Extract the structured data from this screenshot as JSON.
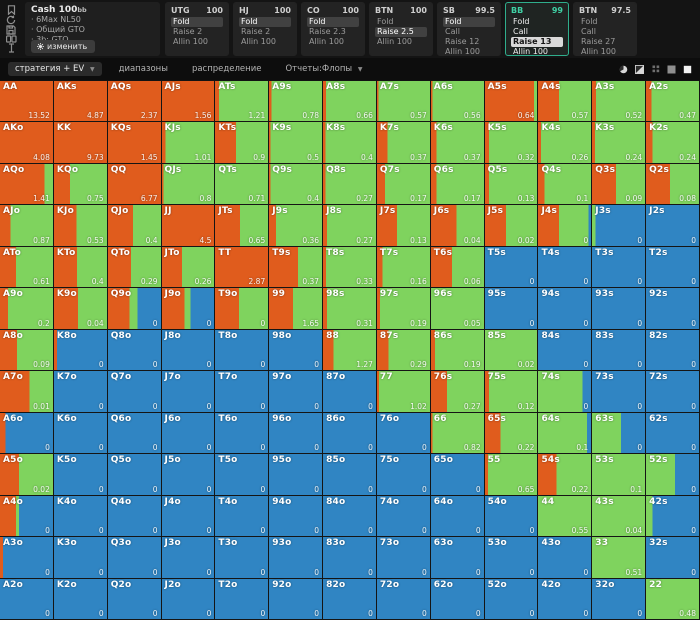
{
  "session": {
    "title": "Cash 100",
    "stack_unit": "bb",
    "lines": [
      "6Max NL50",
      "Общий GTO",
      "3b: GTO"
    ],
    "edit_button": "изменить"
  },
  "rail_icons": [
    "bookmark-icon",
    "history-icon",
    "save-icon",
    "cards-icon",
    "text-cursor-icon"
  ],
  "panels": [
    {
      "pos": "UTG",
      "stack": "100",
      "active": false,
      "actions": [
        {
          "label": "Fold",
          "sel": true
        },
        {
          "label": "Raise 2",
          "sel": false
        },
        {
          "label": "Allin 100",
          "sel": false
        }
      ]
    },
    {
      "pos": "HJ",
      "stack": "100",
      "active": false,
      "actions": [
        {
          "label": "Fold",
          "sel": true
        },
        {
          "label": "Raise 2",
          "sel": false
        },
        {
          "label": "Allin 100",
          "sel": false
        }
      ]
    },
    {
      "pos": "CO",
      "stack": "100",
      "active": false,
      "actions": [
        {
          "label": "Fold",
          "sel": true
        },
        {
          "label": "Raise 2.3",
          "sel": false
        },
        {
          "label": "Allin 100",
          "sel": false
        }
      ]
    },
    {
      "pos": "BTN",
      "stack": "100",
      "active": false,
      "actions": [
        {
          "label": "Fold",
          "sel": false
        },
        {
          "label": "Raise 2.5",
          "sel": true
        },
        {
          "label": "Allin 100",
          "sel": false
        }
      ]
    },
    {
      "pos": "SB",
      "stack": "99.5",
      "active": false,
      "actions": [
        {
          "label": "Fold",
          "sel": true
        },
        {
          "label": "Call",
          "sel": false
        },
        {
          "label": "Raise 12",
          "sel": false
        },
        {
          "label": "Allin 100",
          "sel": false
        }
      ]
    },
    {
      "pos": "BB",
      "stack": "99",
      "active": true,
      "actions": [
        {
          "label": "Fold",
          "sel": false
        },
        {
          "label": "Call",
          "sel": false
        },
        {
          "label": "Raise 13",
          "sel": true
        },
        {
          "label": "Allin 100",
          "sel": false
        }
      ]
    },
    {
      "pos": "BTN",
      "stack": "97.5",
      "active": false,
      "actions": [
        {
          "label": "Fold",
          "sel": false
        },
        {
          "label": "Call",
          "sel": false
        },
        {
          "label": "Raise 27",
          "sel": false
        },
        {
          "label": "Allin 100",
          "sel": false
        }
      ]
    }
  ],
  "toolbar": {
    "tabs": [
      {
        "label": "стратегия + EV",
        "caret": true,
        "active": true
      },
      {
        "label": "диапазоны",
        "caret": false,
        "active": false
      },
      {
        "label": "распределение",
        "caret": false,
        "active": false
      },
      {
        "label": "Отчеты:Флопы",
        "caret": true,
        "active": false
      }
    ],
    "right_icons": [
      "pie-icon",
      "diagonal-square-icon",
      "dots-grid-icon",
      "filled-square-icon",
      "outline-square-icon"
    ]
  },
  "colors": {
    "raise": "#e05c1d",
    "call": "#7fd35e",
    "fold": "#3085c3",
    "accent": "#2fae8c"
  },
  "grid": {
    "legend": {
      "raise": "Raise 13",
      "call": "Call",
      "fold": "Fold"
    },
    "rows": [
      [
        [
          "AA",
          "13.52",
          100,
          0,
          0
        ],
        [
          "AKs",
          "4.87",
          100,
          0,
          0
        ],
        [
          "AQs",
          "2.37",
          100,
          0,
          0
        ],
        [
          "AJs",
          "1.56",
          100,
          0,
          0
        ],
        [
          "ATs",
          "1.21",
          8,
          92,
          0
        ],
        [
          "A9s",
          "0.78",
          5,
          95,
          0
        ],
        [
          "A8s",
          "0.66",
          6,
          94,
          0
        ],
        [
          "A7s",
          "0.57",
          3,
          97,
          0
        ],
        [
          "A6s",
          "0.56",
          3,
          97,
          0
        ],
        [
          "A5s",
          "0.64",
          94,
          6,
          0
        ],
        [
          "A4s",
          "0.57",
          40,
          60,
          0
        ],
        [
          "A3s",
          "0.52",
          8,
          92,
          0
        ],
        [
          "A2s",
          "0.47",
          10,
          90,
          0
        ]
      ],
      [
        [
          "AKo",
          "4.08",
          100,
          0,
          0
        ],
        [
          "KK",
          "9.73",
          100,
          0,
          0
        ],
        [
          "KQs",
          "1.45",
          100,
          0,
          0
        ],
        [
          "KJs",
          "1.01",
          7,
          93,
          0
        ],
        [
          "KTs",
          "0.9",
          40,
          60,
          0
        ],
        [
          "K9s",
          "0.5",
          3,
          97,
          0
        ],
        [
          "K8s",
          "0.4",
          5,
          95,
          0
        ],
        [
          "K7s",
          "0.37",
          20,
          80,
          0
        ],
        [
          "K6s",
          "0.37",
          10,
          90,
          0
        ],
        [
          "K5s",
          "0.32",
          8,
          92,
          0
        ],
        [
          "K4s",
          "0.26",
          6,
          94,
          0
        ],
        [
          "K3s",
          "0.24",
          6,
          94,
          0
        ],
        [
          "K2s",
          "0.24",
          12,
          88,
          0
        ]
      ],
      [
        [
          "AQo",
          "1.41",
          84,
          16,
          0
        ],
        [
          "KQo",
          "0.75",
          30,
          70,
          0
        ],
        [
          "QQ",
          "6.77",
          100,
          0,
          0
        ],
        [
          "QJs",
          "0.8",
          3,
          97,
          0
        ],
        [
          "QTs",
          "0.71",
          0,
          100,
          0
        ],
        [
          "Q9s",
          "0.4",
          3,
          97,
          0
        ],
        [
          "Q8s",
          "0.27",
          5,
          95,
          0
        ],
        [
          "Q7s",
          "0.17",
          15,
          85,
          0
        ],
        [
          "Q6s",
          "0.17",
          10,
          90,
          0
        ],
        [
          "Q5s",
          "0.13",
          8,
          92,
          0
        ],
        [
          "Q4s",
          "0.1",
          12,
          88,
          0
        ],
        [
          "Q3s",
          "0.09",
          45,
          55,
          0
        ],
        [
          "Q2s",
          "0.08",
          45,
          55,
          0
        ]
      ],
      [
        [
          "AJo",
          "0.87",
          20,
          80,
          0
        ],
        [
          "KJo",
          "0.53",
          42,
          58,
          0
        ],
        [
          "QJo",
          "0.4",
          47,
          53,
          0
        ],
        [
          "JJ",
          "4.5",
          100,
          0,
          0
        ],
        [
          "JTs",
          "0.65",
          47,
          53,
          0
        ],
        [
          "J9s",
          "0.36",
          13,
          87,
          0
        ],
        [
          "J8s",
          "0.27",
          8,
          92,
          0
        ],
        [
          "J7s",
          "0.13",
          38,
          62,
          0
        ],
        [
          "J6s",
          "0.04",
          48,
          52,
          0
        ],
        [
          "J5s",
          "0.02",
          40,
          60,
          0
        ],
        [
          "J4s",
          "0",
          40,
          55,
          5
        ],
        [
          "J3s",
          "0",
          0,
          7,
          93
        ],
        [
          "J2s",
          "0",
          0,
          0,
          100
        ]
      ],
      [
        [
          "ATo",
          "0.61",
          30,
          70,
          0
        ],
        [
          "KTo",
          "0.4",
          43,
          57,
          0
        ],
        [
          "QTo",
          "0.29",
          43,
          57,
          0
        ],
        [
          "JTo",
          "0.26",
          38,
          62,
          0
        ],
        [
          "TT",
          "2.87",
          100,
          0,
          0
        ],
        [
          "T9s",
          "0.37",
          55,
          45,
          0
        ],
        [
          "T8s",
          "0.33",
          6,
          94,
          0
        ],
        [
          "T7s",
          "0.16",
          10,
          90,
          0
        ],
        [
          "T6s",
          "0.06",
          40,
          60,
          0
        ],
        [
          "T5s",
          "0",
          0,
          0,
          100
        ],
        [
          "T4s",
          "0",
          0,
          0,
          100
        ],
        [
          "T3s",
          "0",
          0,
          0,
          100
        ],
        [
          "T2s",
          "0",
          0,
          0,
          100
        ]
      ],
      [
        [
          "A9o",
          "0.2",
          15,
          85,
          0
        ],
        [
          "K9o",
          "0.04",
          45,
          55,
          0
        ],
        [
          "Q9o",
          "0",
          41,
          15,
          44
        ],
        [
          "J9o",
          "0",
          43,
          12,
          45
        ],
        [
          "T9o",
          "0",
          45,
          55,
          0
        ],
        [
          "99",
          "1.65",
          45,
          55,
          0
        ],
        [
          "98s",
          "0.31",
          8,
          92,
          0
        ],
        [
          "97s",
          "0.19",
          6,
          94,
          0
        ],
        [
          "96s",
          "0.05",
          0,
          100,
          0
        ],
        [
          "95s",
          "0",
          0,
          0,
          100
        ],
        [
          "94s",
          "0",
          0,
          0,
          100
        ],
        [
          "93s",
          "0",
          0,
          0,
          100
        ],
        [
          "92s",
          "0",
          0,
          0,
          100
        ]
      ],
      [
        [
          "A8o",
          "0.09",
          32,
          68,
          0
        ],
        [
          "K8o",
          "0",
          6,
          0,
          94
        ],
        [
          "Q8o",
          "0",
          0,
          0,
          100
        ],
        [
          "J8o",
          "0",
          0,
          0,
          100
        ],
        [
          "T8o",
          "0",
          0,
          0,
          100
        ],
        [
          "98o",
          "0",
          0,
          0,
          100
        ],
        [
          "88",
          "1.27",
          20,
          80,
          0
        ],
        [
          "87s",
          "0.29",
          22,
          78,
          0
        ],
        [
          "86s",
          "0.19",
          8,
          92,
          0
        ],
        [
          "85s",
          "0.02",
          0,
          100,
          0
        ],
        [
          "84s",
          "0",
          0,
          0,
          100
        ],
        [
          "83s",
          "0",
          0,
          0,
          100
        ],
        [
          "82s",
          "0",
          0,
          0,
          100
        ]
      ],
      [
        [
          "A7o",
          "0.01",
          56,
          44,
          0
        ],
        [
          "K7o",
          "0",
          0,
          0,
          100
        ],
        [
          "Q7o",
          "0",
          0,
          0,
          100
        ],
        [
          "J7o",
          "0",
          0,
          0,
          100
        ],
        [
          "T7o",
          "0",
          0,
          0,
          100
        ],
        [
          "97o",
          "0",
          0,
          0,
          100
        ],
        [
          "87o",
          "0",
          0,
          0,
          100
        ],
        [
          "77",
          "1.02",
          4,
          96,
          0
        ],
        [
          "76s",
          "0.27",
          30,
          70,
          0
        ],
        [
          "75s",
          "0.12",
          8,
          92,
          0
        ],
        [
          "74s",
          "0",
          0,
          84,
          16
        ],
        [
          "73s",
          "0",
          0,
          0,
          100
        ],
        [
          "72s",
          "0",
          0,
          0,
          100
        ]
      ],
      [
        [
          "A6o",
          "0",
          10,
          0,
          90
        ],
        [
          "K6o",
          "0",
          0,
          0,
          100
        ],
        [
          "Q6o",
          "0",
          0,
          0,
          100
        ],
        [
          "J6o",
          "0",
          0,
          0,
          100
        ],
        [
          "T6o",
          "0",
          0,
          0,
          100
        ],
        [
          "96o",
          "0",
          0,
          0,
          100
        ],
        [
          "86o",
          "0",
          0,
          0,
          100
        ],
        [
          "76o",
          "0",
          0,
          0,
          100
        ],
        [
          "66",
          "0.82",
          3,
          97,
          0
        ],
        [
          "65s",
          "0.22",
          30,
          70,
          0
        ],
        [
          "64s",
          "0.1",
          0,
          92,
          8
        ],
        [
          "63s",
          "0",
          0,
          55,
          45
        ],
        [
          "62s",
          "0",
          0,
          0,
          100
        ]
      ],
      [
        [
          "A5o",
          "0.02",
          36,
          64,
          0
        ],
        [
          "K5o",
          "0",
          0,
          0,
          100
        ],
        [
          "Q5o",
          "0",
          0,
          0,
          100
        ],
        [
          "J5o",
          "0",
          0,
          0,
          100
        ],
        [
          "T5o",
          "0",
          0,
          0,
          100
        ],
        [
          "95o",
          "0",
          0,
          0,
          100
        ],
        [
          "85o",
          "0",
          0,
          0,
          100
        ],
        [
          "75o",
          "0",
          0,
          0,
          100
        ],
        [
          "65o",
          "0",
          0,
          0,
          100
        ],
        [
          "55",
          "0.65",
          6,
          94,
          0
        ],
        [
          "54s",
          "0.22",
          35,
          65,
          0
        ],
        [
          "53s",
          "0.1",
          0,
          100,
          0
        ],
        [
          "52s",
          "0",
          0,
          55,
          45
        ]
      ],
      [
        [
          "A4o",
          "0",
          30,
          6,
          64
        ],
        [
          "K4o",
          "0",
          0,
          0,
          100
        ],
        [
          "Q4o",
          "0",
          0,
          0,
          100
        ],
        [
          "J4o",
          "0",
          0,
          0,
          100
        ],
        [
          "T4o",
          "0",
          0,
          0,
          100
        ],
        [
          "94o",
          "0",
          0,
          0,
          100
        ],
        [
          "84o",
          "0",
          0,
          0,
          100
        ],
        [
          "74o",
          "0",
          0,
          0,
          100
        ],
        [
          "64o",
          "0",
          0,
          0,
          100
        ],
        [
          "54o",
          "0",
          0,
          0,
          100
        ],
        [
          "44",
          "0.55",
          0,
          100,
          0
        ],
        [
          "43s",
          "0.04",
          0,
          100,
          0
        ],
        [
          "42s",
          "0",
          0,
          12,
          88
        ]
      ],
      [
        [
          "A3o",
          "0",
          6,
          0,
          94
        ],
        [
          "K3o",
          "0",
          0,
          0,
          100
        ],
        [
          "Q3o",
          "0",
          0,
          0,
          100
        ],
        [
          "J3o",
          "0",
          0,
          0,
          100
        ],
        [
          "T3o",
          "0",
          0,
          0,
          100
        ],
        [
          "93o",
          "0",
          0,
          0,
          100
        ],
        [
          "83o",
          "0",
          0,
          0,
          100
        ],
        [
          "73o",
          "0",
          0,
          0,
          100
        ],
        [
          "63o",
          "0",
          0,
          0,
          100
        ],
        [
          "53o",
          "0",
          0,
          0,
          100
        ],
        [
          "43o",
          "0",
          0,
          0,
          100
        ],
        [
          "33",
          "0.51",
          0,
          100,
          0
        ],
        [
          "32s",
          "0",
          0,
          0,
          100
        ]
      ],
      [
        [
          "A2o",
          "0",
          0,
          0,
          100
        ],
        [
          "K2o",
          "0",
          0,
          0,
          100
        ],
        [
          "Q2o",
          "0",
          0,
          0,
          100
        ],
        [
          "J2o",
          "0",
          0,
          0,
          100
        ],
        [
          "T2o",
          "0",
          0,
          0,
          100
        ],
        [
          "92o",
          "0",
          0,
          0,
          100
        ],
        [
          "82o",
          "0",
          0,
          0,
          100
        ],
        [
          "72o",
          "0",
          0,
          0,
          100
        ],
        [
          "62o",
          "0",
          0,
          0,
          100
        ],
        [
          "52o",
          "0",
          0,
          0,
          100
        ],
        [
          "42o",
          "0",
          0,
          0,
          100
        ],
        [
          "32o",
          "0",
          0,
          0,
          100
        ],
        [
          "22",
          "0.48",
          0,
          100,
          0
        ]
      ]
    ]
  }
}
